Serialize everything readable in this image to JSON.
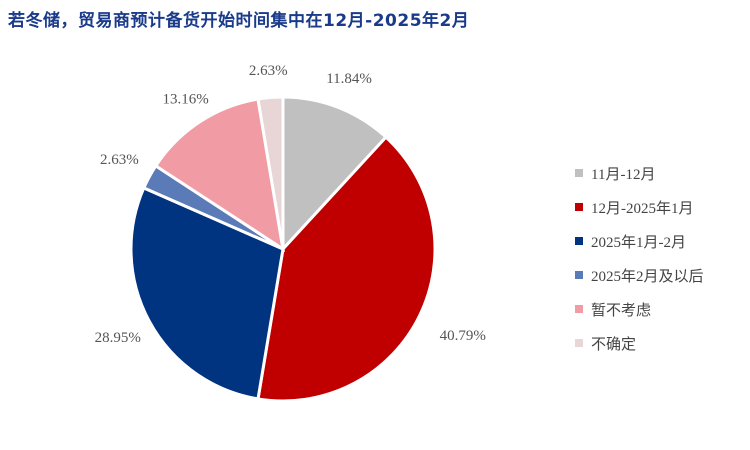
{
  "title": "若冬储，贸易商预计备货开始时间集中在12月-2025年2月",
  "chart_data": {
    "type": "pie",
    "title": "若冬储，贸易商预计备货开始时间集中在12月-2025年2月",
    "labels": [
      "11月-12月",
      "12月-2025年1月",
      "2025年1月-2月",
      "2025年2月及以后",
      "暂不考虑",
      "不确定"
    ],
    "values": [
      11.84,
      40.79,
      28.95,
      2.63,
      13.16,
      2.63
    ],
    "value_labels": [
      "11.84%",
      "40.79%",
      "28.95%",
      "2.63%",
      "13.16%",
      "2.63%"
    ],
    "colors": [
      "#c0c0c0",
      "#c00000",
      "#003380",
      "#5a7ab8",
      "#f19ca5",
      "#e8d6d6"
    ],
    "legend_position": "right",
    "start_angle": "12 o'clock, clockwise"
  },
  "legend": [
    {
      "label": "11月-12月"
    },
    {
      "label": "12月-2025年1月"
    },
    {
      "label": "2025年1月-2月"
    },
    {
      "label": "2025年2月及以后"
    },
    {
      "label": "暂不考虑"
    },
    {
      "label": "不确定"
    }
  ]
}
